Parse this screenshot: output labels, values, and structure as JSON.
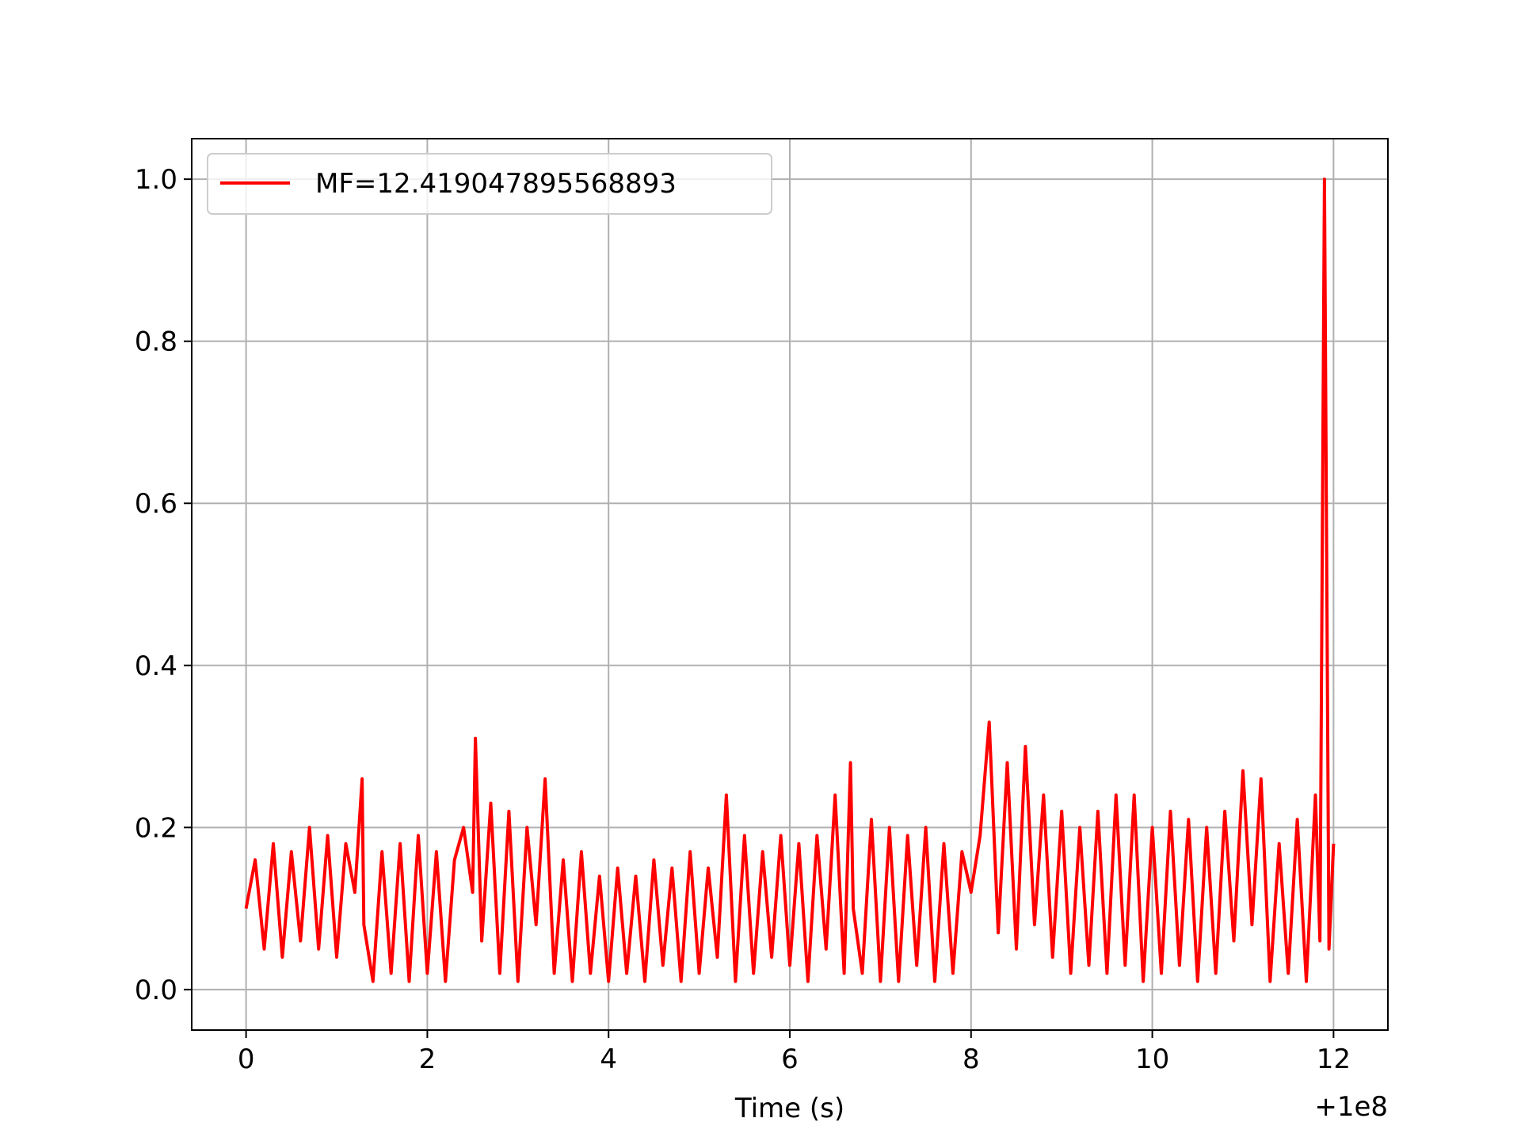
{
  "chart_data": {
    "type": "line",
    "title": "",
    "xlabel": "Time (s)",
    "ylabel": "",
    "x_offset_label": "+1e8",
    "xlim": [
      -0.6,
      12.6
    ],
    "ylim": [
      -0.05,
      1.05
    ],
    "xticks": [
      0,
      2,
      4,
      6,
      8,
      10,
      12
    ],
    "xtick_labels": [
      "0",
      "2",
      "4",
      "6",
      "8",
      "10",
      "12"
    ],
    "yticks": [
      0.0,
      0.2,
      0.4,
      0.6,
      0.8,
      1.0
    ],
    "ytick_labels": [
      "0.0",
      "0.2",
      "0.4",
      "0.6",
      "0.8",
      "1.0"
    ],
    "grid": true,
    "legend_position": "top-left",
    "series": [
      {
        "name": "MF=12.419047895568893",
        "color": "#ff0000",
        "x": [
          0.0,
          0.1,
          0.2,
          0.3,
          0.4,
          0.5,
          0.6,
          0.7,
          0.8,
          0.9,
          1.0,
          1.1,
          1.2,
          1.28,
          1.3,
          1.4,
          1.5,
          1.6,
          1.7,
          1.8,
          1.9,
          2.0,
          2.1,
          2.2,
          2.3,
          2.4,
          2.5,
          2.53,
          2.6,
          2.7,
          2.8,
          2.9,
          3.0,
          3.1,
          3.2,
          3.3,
          3.4,
          3.5,
          3.6,
          3.7,
          3.8,
          3.9,
          4.0,
          4.1,
          4.2,
          4.3,
          4.4,
          4.5,
          4.6,
          4.7,
          4.8,
          4.9,
          5.0,
          5.1,
          5.2,
          5.3,
          5.4,
          5.5,
          5.6,
          5.7,
          5.8,
          5.9,
          6.0,
          6.1,
          6.2,
          6.3,
          6.4,
          6.5,
          6.6,
          6.67,
          6.7,
          6.8,
          6.9,
          7.0,
          7.1,
          7.2,
          7.3,
          7.4,
          7.5,
          7.6,
          7.7,
          7.8,
          7.9,
          8.0,
          8.1,
          8.2,
          8.3,
          8.4,
          8.5,
          8.6,
          8.7,
          8.8,
          8.9,
          9.0,
          9.1,
          9.2,
          9.3,
          9.4,
          9.5,
          9.6,
          9.7,
          9.8,
          9.9,
          10.0,
          10.1,
          10.2,
          10.3,
          10.4,
          10.5,
          10.6,
          10.7,
          10.8,
          10.9,
          11.0,
          11.1,
          11.2,
          11.3,
          11.4,
          11.5,
          11.6,
          11.7,
          11.8,
          11.85,
          11.9,
          11.95,
          12.0
        ],
        "y": [
          0.1,
          0.16,
          0.05,
          0.18,
          0.04,
          0.17,
          0.06,
          0.2,
          0.05,
          0.19,
          0.04,
          0.18,
          0.12,
          0.26,
          0.08,
          0.01,
          0.17,
          0.02,
          0.18,
          0.01,
          0.19,
          0.02,
          0.17,
          0.01,
          0.16,
          0.2,
          0.12,
          0.31,
          0.06,
          0.23,
          0.02,
          0.22,
          0.01,
          0.2,
          0.08,
          0.26,
          0.02,
          0.16,
          0.01,
          0.17,
          0.02,
          0.14,
          0.01,
          0.15,
          0.02,
          0.14,
          0.01,
          0.16,
          0.03,
          0.15,
          0.01,
          0.17,
          0.02,
          0.15,
          0.04,
          0.24,
          0.01,
          0.19,
          0.02,
          0.17,
          0.04,
          0.19,
          0.03,
          0.18,
          0.01,
          0.19,
          0.05,
          0.24,
          0.02,
          0.28,
          0.1,
          0.02,
          0.21,
          0.01,
          0.2,
          0.01,
          0.19,
          0.03,
          0.2,
          0.01,
          0.18,
          0.02,
          0.17,
          0.12,
          0.19,
          0.33,
          0.07,
          0.28,
          0.05,
          0.3,
          0.08,
          0.24,
          0.04,
          0.22,
          0.02,
          0.2,
          0.03,
          0.22,
          0.02,
          0.24,
          0.03,
          0.24,
          0.01,
          0.2,
          0.02,
          0.22,
          0.03,
          0.21,
          0.01,
          0.2,
          0.02,
          0.22,
          0.06,
          0.27,
          0.08,
          0.26,
          0.01,
          0.18,
          0.02,
          0.21,
          0.01,
          0.24,
          0.06,
          1.0,
          0.05,
          0.18
        ]
      }
    ]
  }
}
